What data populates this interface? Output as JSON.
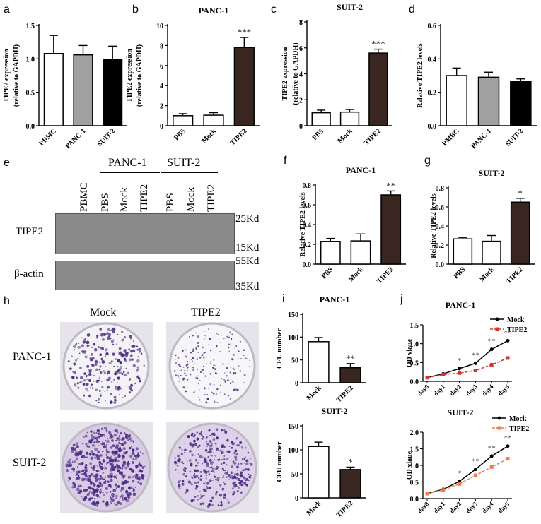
{
  "panels": {
    "a": {
      "letter": "a",
      "title": "",
      "ylabel": [
        "TIPE2 expression",
        "(relative to GAPDH)"
      ],
      "categories": [
        "PBMC",
        "PANC-1",
        "SUIT-2"
      ],
      "values": [
        1.08,
        1.06,
        0.99
      ],
      "errors": [
        0.27,
        0.14,
        0.2
      ],
      "fills": [
        "#ffffff",
        "#a0a0a0",
        "#000000"
      ],
      "ylim": [
        0,
        1.5
      ],
      "ticks": [
        "0.0",
        "0.5",
        "1.0",
        "1.5"
      ],
      "sig": [
        "",
        "",
        ""
      ]
    },
    "b": {
      "letter": "b",
      "title": "PANC-1",
      "ylabel": [
        "TIPE2 expression",
        "(relative to GAPDH)"
      ],
      "categories": [
        "PBS",
        "Mock",
        "TIPE2"
      ],
      "values": [
        1.0,
        1.05,
        7.8
      ],
      "errors": [
        0.2,
        0.25,
        1.0
      ],
      "fills": [
        "#ffffff",
        "#ffffff",
        "#3a2620"
      ],
      "ylim": [
        0,
        10
      ],
      "ticks": [
        "0",
        "2",
        "4",
        "6",
        "8",
        "10"
      ],
      "sig": [
        "",
        "",
        "***"
      ]
    },
    "c": {
      "letter": "c",
      "title": "SUIT-2",
      "ylabel": [
        "TIPE2 expression",
        "(relative to GAPDH)"
      ],
      "categories": [
        "PBS",
        "Mock",
        "TIPE2"
      ],
      "values": [
        1.0,
        1.05,
        5.6
      ],
      "errors": [
        0.2,
        0.2,
        0.3
      ],
      "fills": [
        "#ffffff",
        "#ffffff",
        "#3a2620"
      ],
      "ylim": [
        0,
        8
      ],
      "ticks": [
        "0",
        "2",
        "4",
        "6",
        "8"
      ],
      "sig": [
        "",
        "",
        "***"
      ]
    },
    "d": {
      "letter": "d",
      "title": "",
      "ylabel": [
        "Relative TIPE2 levels"
      ],
      "categories": [
        "PMBC",
        "PANC-1",
        "SUIT-2"
      ],
      "values": [
        0.3,
        0.29,
        0.265
      ],
      "errors": [
        0.045,
        0.03,
        0.015
      ],
      "fills": [
        "#ffffff",
        "#a0a0a0",
        "#000000"
      ],
      "ylim": [
        0,
        0.6
      ],
      "ticks": [
        "0.0",
        "0.2",
        "0.4",
        "0.6"
      ],
      "sig": [
        "",
        "",
        ""
      ]
    },
    "f": {
      "letter": "f",
      "title": "PANC-1",
      "ylabel": [
        "Relative TIPE2 levels"
      ],
      "categories": [
        "PBS",
        "Mock",
        "TIPE2"
      ],
      "values": [
        0.23,
        0.235,
        0.7
      ],
      "errors": [
        0.03,
        0.07,
        0.04
      ],
      "fills": [
        "#ffffff",
        "#ffffff",
        "#3a2620"
      ],
      "ylim": [
        0,
        0.8
      ],
      "ticks": [
        "0.0",
        "0.2",
        "0.4",
        "0.6",
        "0.8"
      ],
      "sig": [
        "",
        "",
        "**"
      ]
    },
    "g": {
      "letter": "g",
      "title": "SUIT-2",
      "ylabel": [
        "Relative TIPE2 levels"
      ],
      "categories": [
        "PBS",
        "Mock",
        "TIPE2"
      ],
      "values": [
        0.265,
        0.24,
        0.65
      ],
      "errors": [
        0.015,
        0.06,
        0.04
      ],
      "fills": [
        "#ffffff",
        "#ffffff",
        "#3a2620"
      ],
      "ylim": [
        0,
        0.8
      ],
      "ticks": [
        "0.0",
        "0.2",
        "0.4",
        "0.6",
        "0.8"
      ],
      "sig": [
        "",
        "",
        "*"
      ]
    },
    "i1": {
      "letter": "i",
      "title": "PANC-1",
      "ylabel": [
        "CFU number"
      ],
      "categories": [
        "Mock",
        "TIPE2"
      ],
      "values": [
        90,
        33
      ],
      "errors": [
        9,
        9
      ],
      "fills": [
        "#ffffff",
        "#3a2620"
      ],
      "ylim": [
        0,
        150
      ],
      "ticks": [
        "0",
        "50",
        "100",
        "150"
      ],
      "sig": [
        "",
        "**"
      ]
    },
    "i2": {
      "letter": "",
      "title": "SUIT-2",
      "ylabel": [
        "CFU number"
      ],
      "categories": [
        "Mock",
        "TIPE2"
      ],
      "values": [
        107,
        59
      ],
      "errors": [
        9,
        5
      ],
      "fills": [
        "#ffffff",
        "#3a2620"
      ],
      "ylim": [
        0,
        150
      ],
      "ticks": [
        "0",
        "50",
        "100",
        "150"
      ],
      "sig": [
        "",
        "*"
      ]
    }
  },
  "lines": {
    "j1": {
      "letter": "j",
      "title": "PANC-1",
      "ylabel": "OD vlaue",
      "x": [
        "day0",
        "day1",
        "day2",
        "day3",
        "day4",
        "day5"
      ],
      "ylim": [
        0,
        1.5
      ],
      "ticks": [
        "0.0",
        "0.5",
        "1.0",
        "1.5"
      ],
      "series": [
        {
          "name": "Mock",
          "values": [
            0.1,
            0.2,
            0.34,
            0.48,
            0.85,
            1.08
          ],
          "color": "#000000",
          "dash": false,
          "marker": "circle"
        },
        {
          "name": "TIPE2",
          "values": [
            0.1,
            0.18,
            0.22,
            0.29,
            0.44,
            0.62
          ],
          "color": "#d9322a",
          "dash": true,
          "marker": "square"
        }
      ],
      "sig": [
        "",
        "",
        "*",
        "**",
        "**",
        "**"
      ]
    },
    "j2": {
      "letter": "",
      "title": "SUIT-2",
      "ylabel": "OD vlaue",
      "x": [
        "day0",
        "day1",
        "day2",
        "day3",
        "day4",
        "day5"
      ],
      "ylim": [
        0,
        2.0
      ],
      "ticks": [
        "0.0",
        "0.5",
        "1.0",
        "1.5",
        "2.0"
      ],
      "series": [
        {
          "name": "Mock",
          "values": [
            0.15,
            0.28,
            0.52,
            0.88,
            1.28,
            1.58
          ],
          "color": "#000000",
          "dash": false,
          "marker": "circle"
        },
        {
          "name": "TIPE2",
          "values": [
            0.15,
            0.26,
            0.44,
            0.7,
            0.95,
            1.2
          ],
          "color": "#f07a4a",
          "dash": true,
          "marker": "square"
        }
      ],
      "sig": [
        "",
        "",
        "*",
        "**",
        "**",
        "**"
      ]
    }
  },
  "blot": {
    "letter": "e",
    "groups": [
      "PANC-1",
      "SUIT-2"
    ],
    "lanes": [
      "PBMC",
      "PBS",
      "Mock",
      "TIPE2",
      "PBS",
      "Mock",
      "TIPE2"
    ],
    "rows": [
      "TIPE2",
      "β-actin"
    ],
    "markers": [
      "25Kd",
      "15Kd",
      "55Kd",
      "35Kd"
    ]
  },
  "colonies": {
    "letter": "h",
    "columns": [
      "Mock",
      "TIPE2"
    ],
    "rows": [
      "PANC-1",
      "SUIT-2"
    ]
  }
}
